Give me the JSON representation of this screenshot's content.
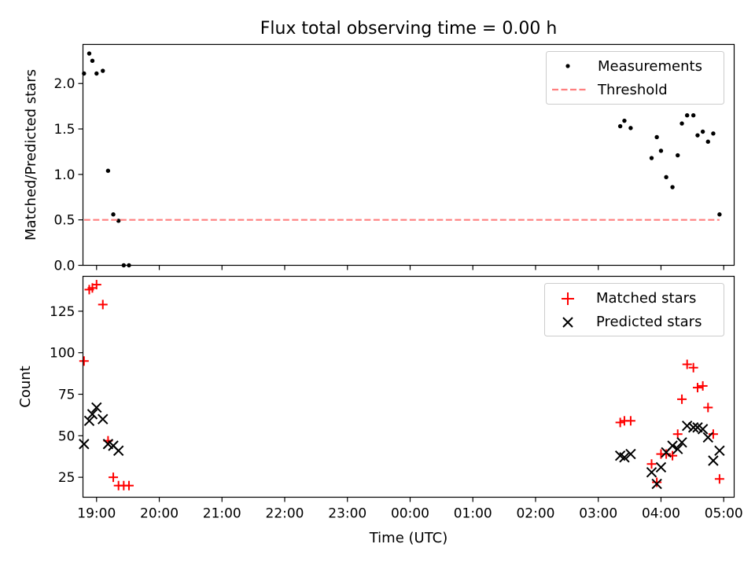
{
  "figure": {
    "title": "Flux total observing time = 0.00 h",
    "xlabel": "Time (UTC)"
  },
  "chart_data": [
    {
      "type": "scatter",
      "ylabel": "Matched/Predicted stars",
      "xlim": [
        "18:47",
        "05:10"
      ],
      "ylim": [
        0,
        2.43
      ],
      "yticks": [
        0.0,
        0.5,
        1.0,
        1.5,
        2.0
      ],
      "ytick_labels": [
        "0.0",
        "0.5",
        "1.0",
        "1.5",
        "2.0"
      ],
      "legend_position": "top-right",
      "colors": {
        "measurements": "#000000",
        "threshold": "#ff7f7f"
      },
      "series": [
        {
          "name": "Measurements",
          "marker": "dot",
          "points": [
            [
              "18:48",
              2.11
            ],
            [
              "18:53",
              2.33
            ],
            [
              "18:56",
              2.25
            ],
            [
              "19:00",
              2.11
            ],
            [
              "19:06",
              2.14
            ],
            [
              "19:11",
              1.04
            ],
            [
              "19:16",
              0.56
            ],
            [
              "19:21",
              0.49
            ],
            [
              "19:26",
              0.0
            ],
            [
              "19:31",
              0.0
            ],
            [
              "03:21",
              1.53
            ],
            [
              "03:25",
              1.59
            ],
            [
              "03:31",
              1.51
            ],
            [
              "03:51",
              1.18
            ],
            [
              "03:56",
              1.41
            ],
            [
              "04:00",
              1.26
            ],
            [
              "04:05",
              0.97
            ],
            [
              "04:11",
              0.86
            ],
            [
              "04:16",
              1.21
            ],
            [
              "04:20",
              1.56
            ],
            [
              "04:25",
              1.65
            ],
            [
              "04:31",
              1.65
            ],
            [
              "04:35",
              1.43
            ],
            [
              "04:40",
              1.47
            ],
            [
              "04:45",
              1.36
            ],
            [
              "04:50",
              1.45
            ],
            [
              "04:56",
              0.56
            ]
          ]
        },
        {
          "name": "Threshold",
          "style": "dashed-line",
          "points": [
            [
              "18:48",
              0.5
            ],
            [
              "04:56",
              0.5
            ]
          ]
        }
      ]
    },
    {
      "type": "scatter",
      "ylabel": "Count",
      "xlim": [
        "18:47",
        "05:10"
      ],
      "ylim": [
        13,
        146
      ],
      "yticks": [
        25,
        50,
        75,
        100,
        125
      ],
      "ytick_labels": [
        "25",
        "50",
        "75",
        "100",
        "125"
      ],
      "xticks": [
        "19:00",
        "20:00",
        "21:00",
        "22:00",
        "23:00",
        "00:00",
        "01:00",
        "02:00",
        "03:00",
        "04:00",
        "05:00"
      ],
      "xtick_labels": [
        "19:00",
        "20:00",
        "21:00",
        "22:00",
        "23:00",
        "00:00",
        "01:00",
        "02:00",
        "03:00",
        "04:00",
        "05:00"
      ],
      "legend_position": "top-right",
      "colors": {
        "matched": "#ff0000",
        "predicted": "#000000"
      },
      "series": [
        {
          "name": "Matched stars",
          "marker": "plus",
          "points": [
            [
              "18:48",
              95
            ],
            [
              "18:53",
              138
            ],
            [
              "18:56",
              139
            ],
            [
              "19:00",
              141
            ],
            [
              "19:06",
              129
            ],
            [
              "19:11",
              47
            ],
            [
              "19:16",
              25
            ],
            [
              "19:21",
              20
            ],
            [
              "19:26",
              20
            ],
            [
              "19:31",
              20
            ],
            [
              "03:21",
              58
            ],
            [
              "03:25",
              59
            ],
            [
              "03:31",
              59
            ],
            [
              "03:51",
              33
            ],
            [
              "03:56",
              22
            ],
            [
              "04:00",
              39
            ],
            [
              "04:05",
              39
            ],
            [
              "04:11",
              38
            ],
            [
              "04:16",
              51
            ],
            [
              "04:20",
              72
            ],
            [
              "04:25",
              93
            ],
            [
              "04:31",
              91
            ],
            [
              "04:35",
              79
            ],
            [
              "04:40",
              80
            ],
            [
              "04:45",
              67
            ],
            [
              "04:50",
              51
            ],
            [
              "04:56",
              24
            ]
          ]
        },
        {
          "name": "Predicted stars",
          "marker": "x",
          "points": [
            [
              "18:48",
              45
            ],
            [
              "18:53",
              59
            ],
            [
              "18:56",
              63
            ],
            [
              "19:00",
              67
            ],
            [
              "19:06",
              60
            ],
            [
              "19:11",
              45
            ],
            [
              "19:16",
              44
            ],
            [
              "19:21",
              41
            ],
            [
              "03:21",
              38
            ],
            [
              "03:25",
              37
            ],
            [
              "03:31",
              39
            ],
            [
              "03:51",
              28
            ],
            [
              "03:56",
              21
            ],
            [
              "04:00",
              31
            ],
            [
              "04:05",
              40
            ],
            [
              "04:11",
              44
            ],
            [
              "04:16",
              42
            ],
            [
              "04:20",
              46
            ],
            [
              "04:25",
              56
            ],
            [
              "04:31",
              55
            ],
            [
              "04:35",
              55
            ],
            [
              "04:40",
              54
            ],
            [
              "04:45",
              49
            ],
            [
              "04:50",
              35
            ],
            [
              "04:56",
              41
            ]
          ]
        }
      ]
    }
  ]
}
